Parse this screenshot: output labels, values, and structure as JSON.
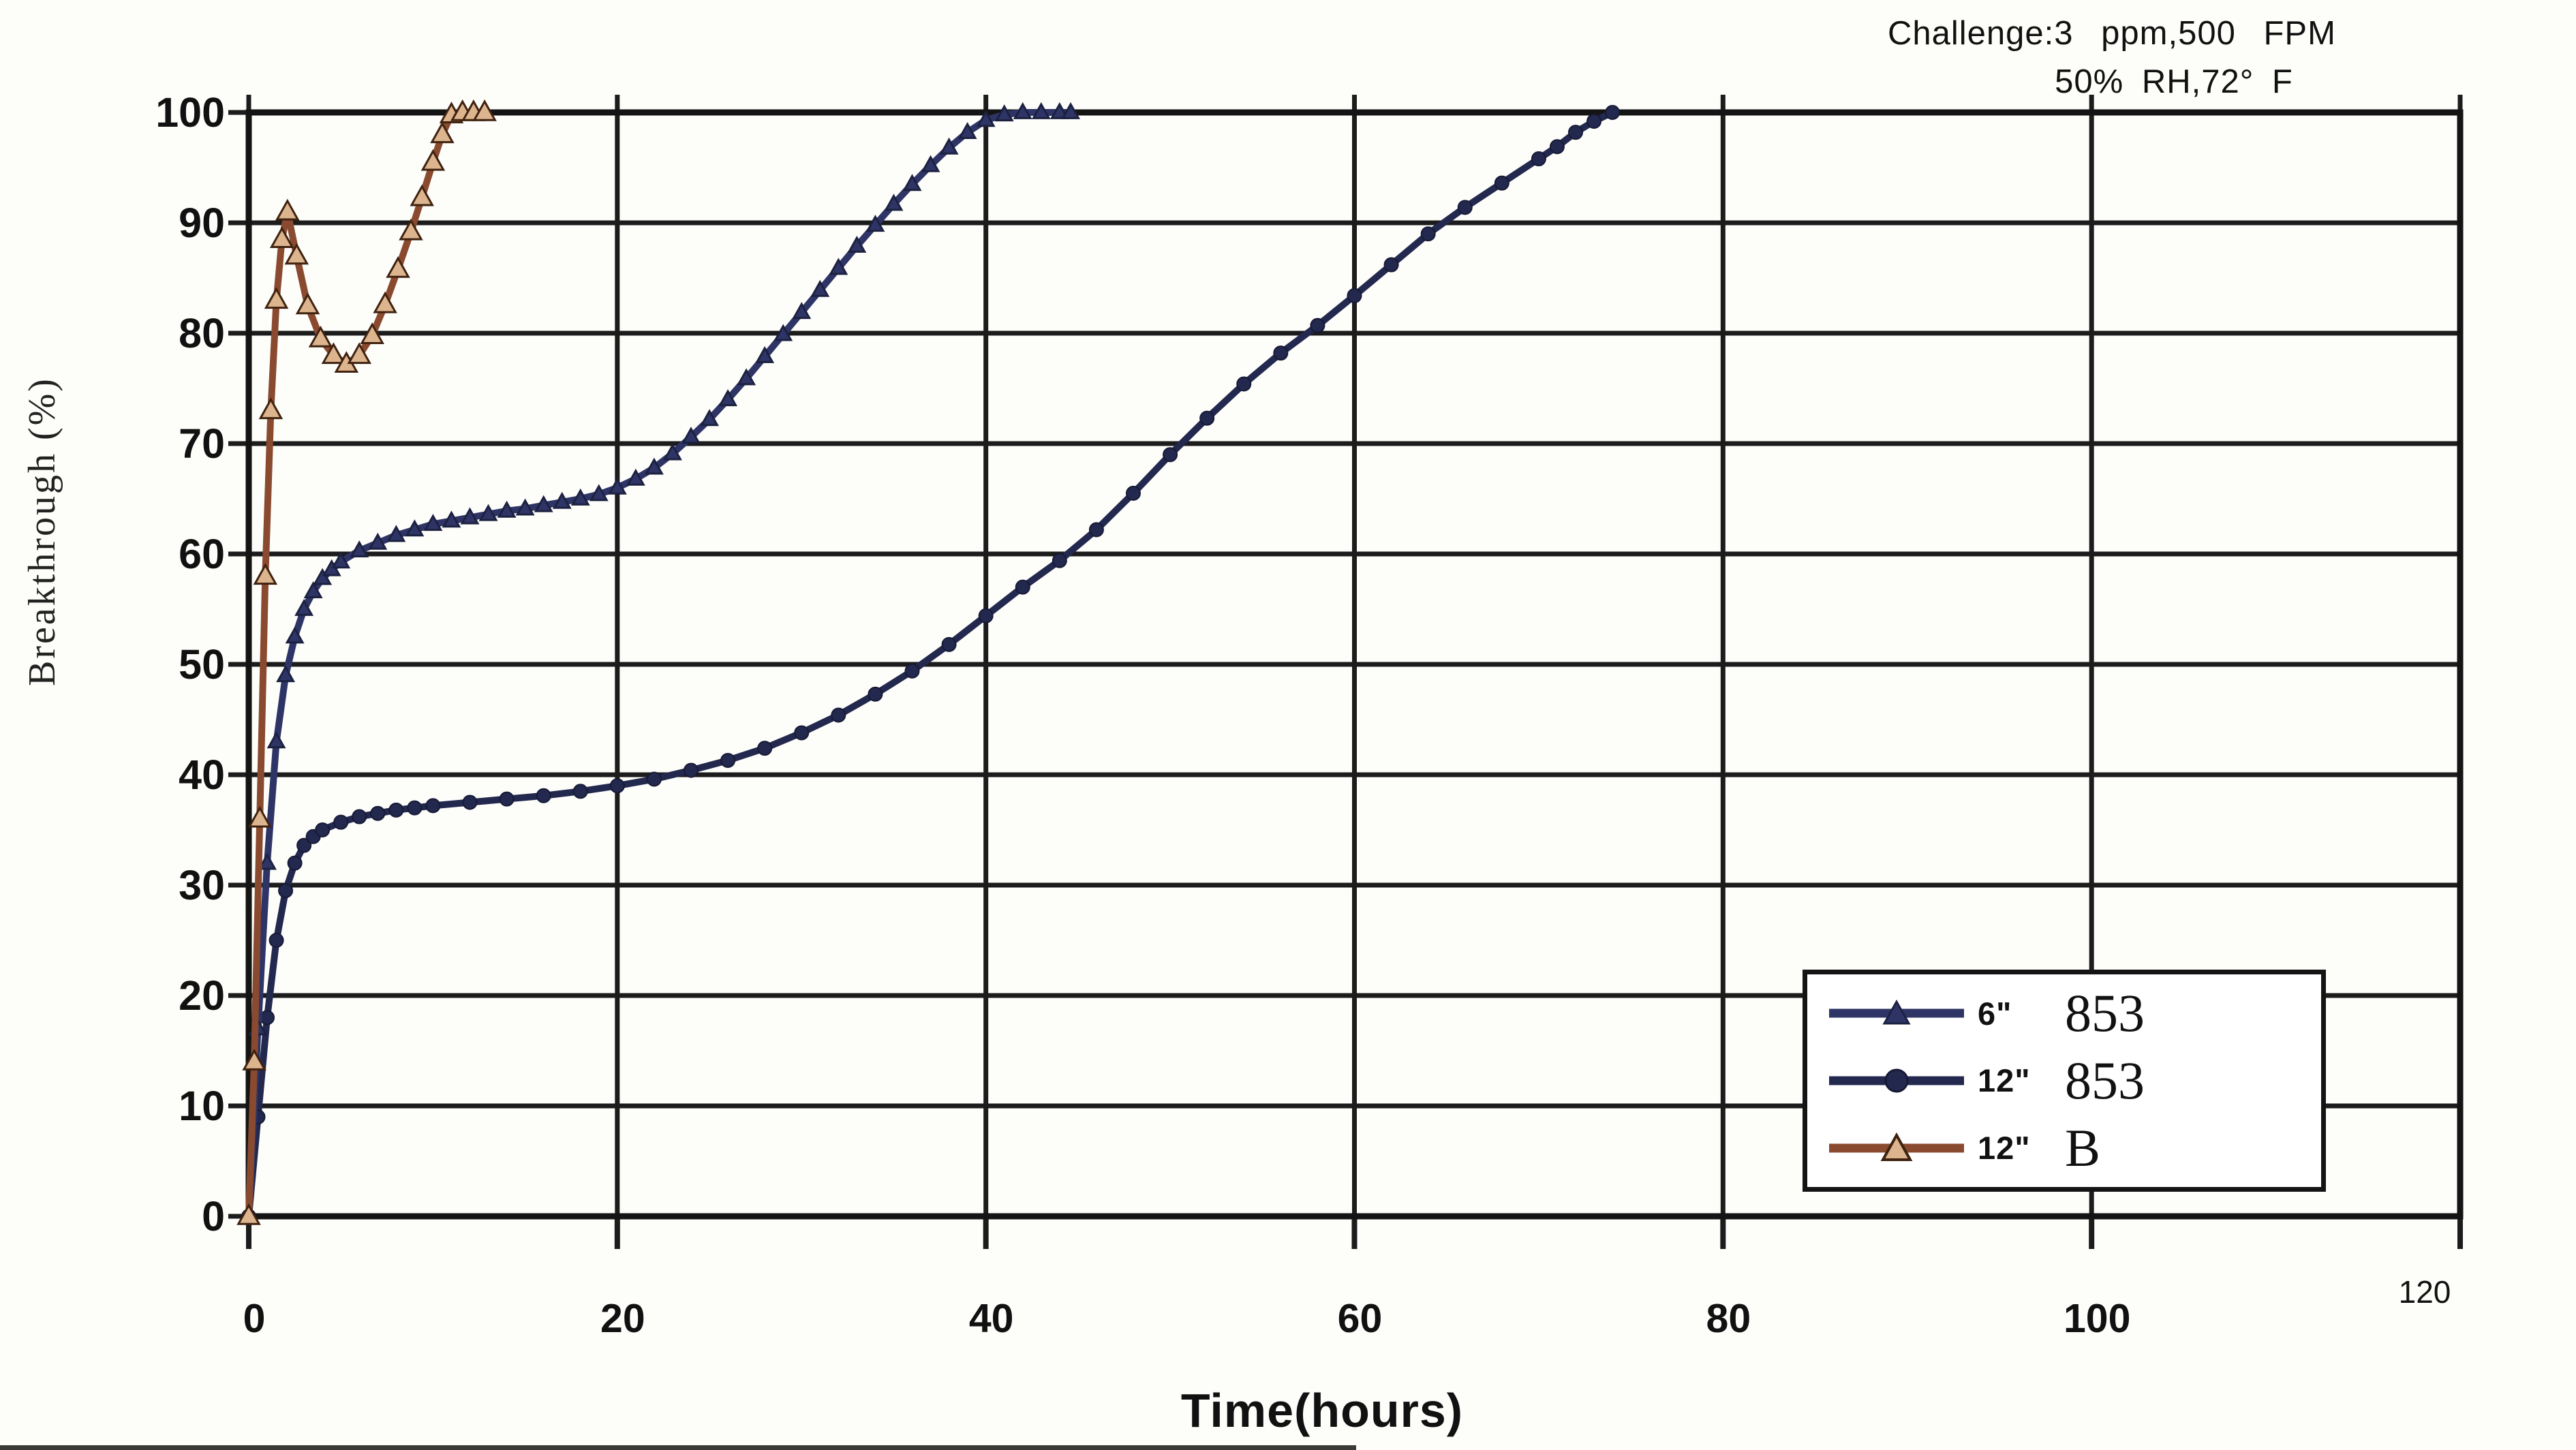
{
  "annotation": {
    "line1": "Challenge:3 ppm,500 FPM",
    "line2": "50% RH,72° F"
  },
  "axes": {
    "x_title": "Time(hours)",
    "y_title": "Breakthrough (%)",
    "x_ticks": [
      {
        "v": 0,
        "label": "0",
        "minor": false
      },
      {
        "v": 20,
        "label": "20",
        "minor": false
      },
      {
        "v": 40,
        "label": "40",
        "minor": false
      },
      {
        "v": 60,
        "label": "60",
        "minor": false
      },
      {
        "v": 80,
        "label": "80",
        "minor": false
      },
      {
        "v": 100,
        "label": "100",
        "minor": false
      },
      {
        "v": 120,
        "label": "120",
        "minor": true
      }
    ],
    "y_ticks": [
      {
        "v": 0,
        "label": "0"
      },
      {
        "v": 10,
        "label": "10"
      },
      {
        "v": 20,
        "label": "20"
      },
      {
        "v": 30,
        "label": "30"
      },
      {
        "v": 40,
        "label": "40"
      },
      {
        "v": 50,
        "label": "50"
      },
      {
        "v": 60,
        "label": "60"
      },
      {
        "v": 70,
        "label": "70"
      },
      {
        "v": 80,
        "label": "80"
      },
      {
        "v": 90,
        "label": "90"
      },
      {
        "v": 100,
        "label": "100"
      }
    ]
  },
  "legend": {
    "items": [
      {
        "size": "6\"",
        "name": "853"
      },
      {
        "size": "12\"",
        "name": "853"
      },
      {
        "size": "12\"",
        "name": "B"
      }
    ]
  },
  "colors": {
    "grid": "#1c1c1c",
    "frame": "#141414",
    "text": "#111111",
    "background": "#fdfdfa",
    "legend_background": "#ffffff"
  },
  "chart_data": {
    "type": "line",
    "title": "",
    "xlabel": "Time(hours)",
    "ylabel": "Breakthrough (%)",
    "xlim": [
      0,
      120
    ],
    "ylim": [
      0,
      100
    ],
    "x_gridline_step": 20,
    "y_gridline_step": 10,
    "grid": true,
    "legend_position": "lower right",
    "annotation": "Challenge:3 ppm,500 FPM; 50% RH,72° F",
    "series": [
      {
        "name": "12\" 853",
        "marker": "circle",
        "marker_size": 10,
        "color": "#23284e",
        "marker_fill": "#23284e",
        "marker_edge": "#161a35",
        "points": [
          [
            0,
            0
          ],
          [
            0.5,
            9
          ],
          [
            1,
            18
          ],
          [
            1.5,
            25
          ],
          [
            2,
            29.5
          ],
          [
            2.5,
            32
          ],
          [
            3,
            33.6
          ],
          [
            3.5,
            34.4
          ],
          [
            4,
            35
          ],
          [
            5,
            35.7
          ],
          [
            6,
            36.2
          ],
          [
            7,
            36.5
          ],
          [
            8,
            36.8
          ],
          [
            9,
            37
          ],
          [
            10,
            37.2
          ],
          [
            12,
            37.5
          ],
          [
            14,
            37.8
          ],
          [
            16,
            38.1
          ],
          [
            18,
            38.5
          ],
          [
            20,
            39
          ],
          [
            22,
            39.6
          ],
          [
            24,
            40.4
          ],
          [
            26,
            41.3
          ],
          [
            28,
            42.4
          ],
          [
            30,
            43.8
          ],
          [
            32,
            45.4
          ],
          [
            34,
            47.3
          ],
          [
            36,
            49.4
          ],
          [
            38,
            51.8
          ],
          [
            40,
            54.4
          ],
          [
            42,
            57
          ],
          [
            44,
            59.4
          ],
          [
            46,
            62.2
          ],
          [
            48,
            65.5
          ],
          [
            50,
            69
          ],
          [
            52,
            72.3
          ],
          [
            54,
            75.4
          ],
          [
            56,
            78.2
          ],
          [
            58,
            80.7
          ],
          [
            60,
            83.4
          ],
          [
            62,
            86.2
          ],
          [
            64,
            89
          ],
          [
            66,
            91.4
          ],
          [
            68,
            93.6
          ],
          [
            70,
            95.8
          ],
          [
            71,
            96.9
          ],
          [
            72,
            98.2
          ],
          [
            73,
            99.2
          ],
          [
            74,
            100
          ]
        ]
      },
      {
        "name": "6\" 853",
        "marker": "triangle",
        "marker_size": 12,
        "color": "#2e3566",
        "marker_fill": "#2e3566",
        "marker_edge": "#1c2140",
        "points": [
          [
            0,
            0
          ],
          [
            0.5,
            17
          ],
          [
            1,
            32
          ],
          [
            1.5,
            43
          ],
          [
            2,
            49
          ],
          [
            2.5,
            52.5
          ],
          [
            3,
            55
          ],
          [
            3.5,
            56.6
          ],
          [
            4,
            57.8
          ],
          [
            4.5,
            58.6
          ],
          [
            5,
            59.3
          ],
          [
            6,
            60.3
          ],
          [
            7,
            61
          ],
          [
            8,
            61.7
          ],
          [
            9,
            62.2
          ],
          [
            10,
            62.7
          ],
          [
            11,
            63
          ],
          [
            12,
            63.3
          ],
          [
            13,
            63.6
          ],
          [
            14,
            63.9
          ],
          [
            15,
            64.1
          ],
          [
            16,
            64.4
          ],
          [
            17,
            64.7
          ],
          [
            18,
            65
          ],
          [
            19,
            65.4
          ],
          [
            20,
            66
          ],
          [
            21,
            66.8
          ],
          [
            22,
            67.8
          ],
          [
            23,
            69.1
          ],
          [
            24,
            70.6
          ],
          [
            25,
            72.2
          ],
          [
            26,
            74
          ],
          [
            27,
            75.9
          ],
          [
            28,
            77.9
          ],
          [
            29,
            79.9
          ],
          [
            30,
            81.9
          ],
          [
            31,
            83.9
          ],
          [
            32,
            85.9
          ],
          [
            33,
            87.9
          ],
          [
            34,
            89.8
          ],
          [
            35,
            91.7
          ],
          [
            36,
            93.5
          ],
          [
            37,
            95.2
          ],
          [
            38,
            96.8
          ],
          [
            39,
            98.2
          ],
          [
            40,
            99.3
          ],
          [
            41,
            99.8
          ],
          [
            42,
            100
          ],
          [
            43,
            100
          ],
          [
            44,
            100
          ],
          [
            44.6,
            100
          ]
        ]
      },
      {
        "name": "12\" B",
        "marker": "triangle",
        "marker_size": 16,
        "color": "#8a4a30",
        "marker_fill": "#dcb48e",
        "marker_edge": "#3f220f",
        "points": [
          [
            0,
            0
          ],
          [
            0.3,
            14
          ],
          [
            0.6,
            36
          ],
          [
            0.9,
            58
          ],
          [
            1.2,
            73
          ],
          [
            1.5,
            83
          ],
          [
            1.8,
            88.5
          ],
          [
            2.1,
            91
          ],
          [
            2.6,
            87
          ],
          [
            3.2,
            82.5
          ],
          [
            3.9,
            79.5
          ],
          [
            4.6,
            78
          ],
          [
            5.3,
            77.2
          ],
          [
            6,
            78
          ],
          [
            6.7,
            79.8
          ],
          [
            7.4,
            82.6
          ],
          [
            8.1,
            85.8
          ],
          [
            8.8,
            89.2
          ],
          [
            9.4,
            92.3
          ],
          [
            10,
            95.5
          ],
          [
            10.5,
            98
          ],
          [
            11,
            99.8
          ],
          [
            11.6,
            100
          ],
          [
            12.2,
            100
          ],
          [
            12.8,
            100
          ]
        ]
      }
    ]
  }
}
